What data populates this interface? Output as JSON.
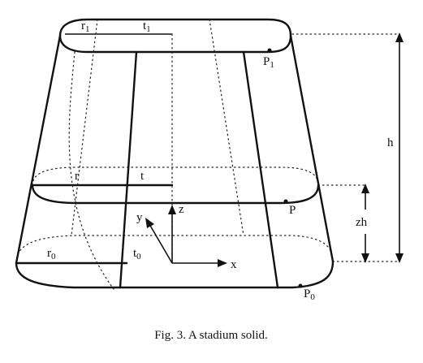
{
  "labels": {
    "r1": "r",
    "r1_sub": "1",
    "t1": "t",
    "t1_sub": "1",
    "P1": "P",
    "P1_sub": "1",
    "r": "r",
    "t": "t",
    "P": "P",
    "r0": "r",
    "r0_sub": "0",
    "t0": "t",
    "t0_sub": "0",
    "P0": "P",
    "P0_sub": "0",
    "x": "x",
    "y": "y",
    "z": "z",
    "h": "h",
    "zh": "zh"
  },
  "caption": "Fig. 3. A stadium solid."
}
